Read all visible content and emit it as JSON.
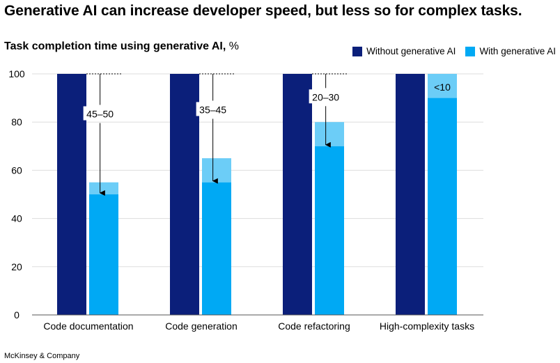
{
  "title": "Generative AI can increase developer speed, but less so for complex tasks.",
  "subtitle_bold": "Task completion time using generative AI,",
  "subtitle_unit": " %",
  "source": "McKinsey & Company",
  "colors": {
    "without": "#0b1f7a",
    "with_base": "#00a9f4",
    "with_range": "#6ccdf7",
    "grid": "#dddddd",
    "axis": "#555555"
  },
  "chart_data": {
    "type": "bar",
    "categories": [
      "Code documentation",
      "Code generation",
      "Code refactoring",
      "High-complexity tasks"
    ],
    "series": [
      {
        "name": "Without generative AI",
        "values": [
          100,
          100,
          100,
          100
        ]
      },
      {
        "name": "With generative AI",
        "low": [
          50,
          55,
          70,
          90
        ],
        "high": [
          55,
          65,
          80,
          100
        ]
      }
    ],
    "annotations": [
      "45–50",
      "35–45",
      "20–30",
      "<10"
    ],
    "yticks": [
      0,
      20,
      40,
      60,
      80,
      100
    ],
    "ylim": [
      0,
      100
    ],
    "grid": true,
    "legend_position": "top-right"
  }
}
